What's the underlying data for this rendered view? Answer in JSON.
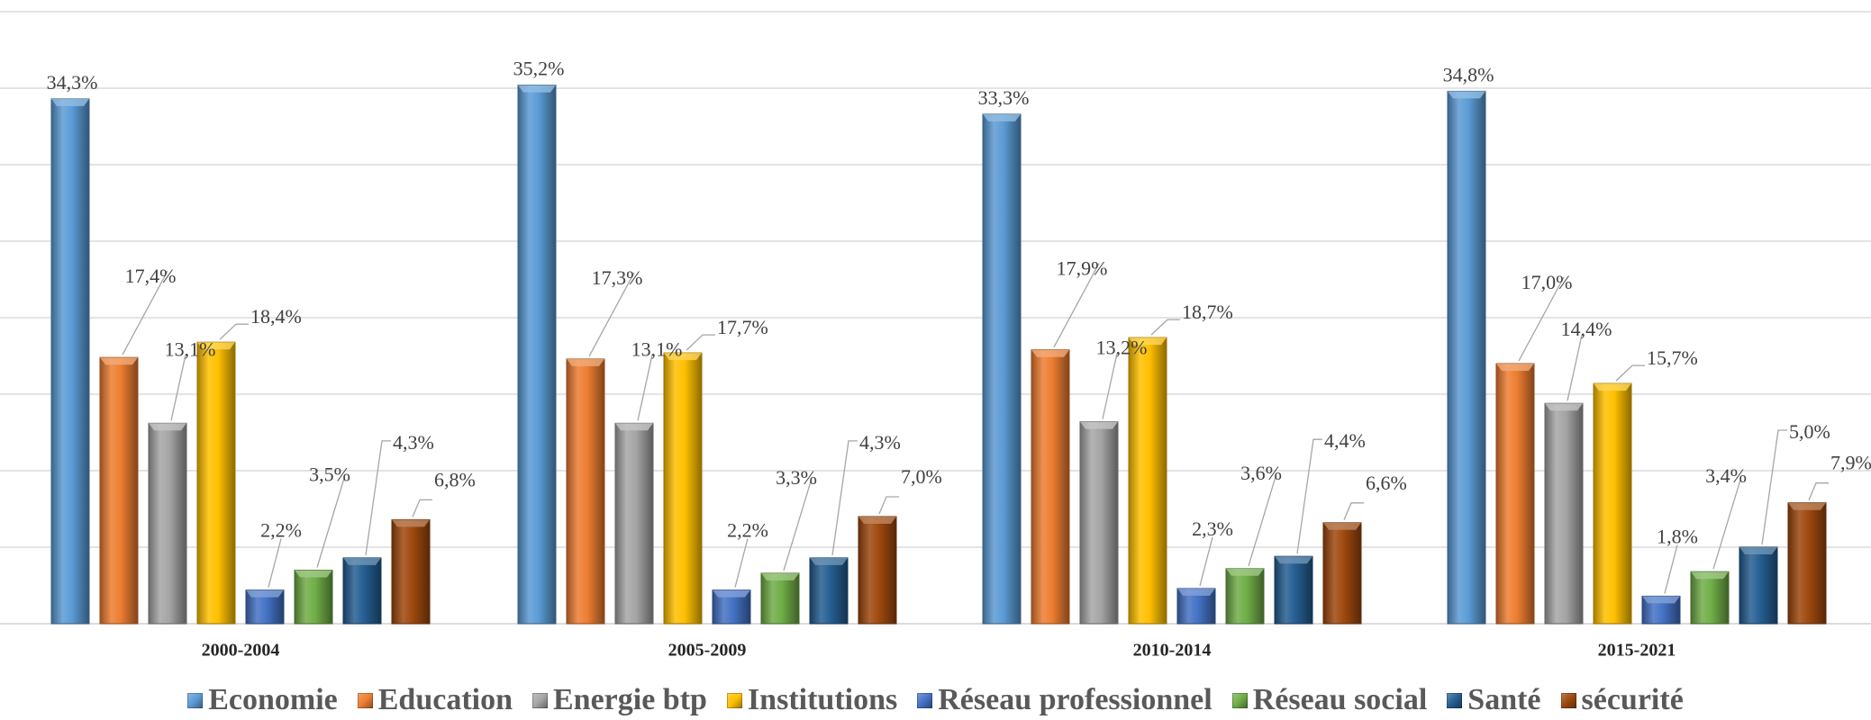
{
  "chart_data": {
    "type": "bar",
    "categories": [
      "2000-2004",
      "2005-2009",
      "2010-2014",
      "2015-2021"
    ],
    "series": [
      {
        "name": "Economie",
        "color": "#5B9BD5",
        "values": [
          34.3,
          35.2,
          33.3,
          34.8
        ],
        "labels": [
          "34,3%",
          "35,2%",
          "33,3%",
          "34,8%"
        ]
      },
      {
        "name": "Education",
        "color": "#ED7D31",
        "values": [
          17.4,
          17.3,
          17.9,
          17.0
        ],
        "labels": [
          "17,4%",
          "17,3%",
          "17,9%",
          "17,0%"
        ]
      },
      {
        "name": "Energie btp",
        "color": "#A5A5A5",
        "values": [
          13.1,
          13.1,
          13.2,
          14.4
        ],
        "labels": [
          "13,1%",
          "13,1%",
          "13,2%",
          "14,4%"
        ]
      },
      {
        "name": "Institutions",
        "color": "#FFC000",
        "values": [
          18.4,
          17.7,
          18.7,
          15.7
        ],
        "labels": [
          "18,4%",
          "17,7%",
          "18,7%",
          "15,7%"
        ]
      },
      {
        "name": "Réseau professionnel",
        "color": "#4472C4",
        "values": [
          2.2,
          2.2,
          2.3,
          1.8
        ],
        "labels": [
          "2,2%",
          "2,2%",
          "2,3%",
          "1,8%"
        ]
      },
      {
        "name": "Réseau social",
        "color": "#70AD47",
        "values": [
          3.5,
          3.3,
          3.6,
          3.4
        ],
        "labels": [
          "3,5%",
          "3,3%",
          "3,6%",
          "3,4%"
        ]
      },
      {
        "name": "Santé",
        "color": "#255E91",
        "values": [
          4.3,
          4.3,
          4.4,
          5.0
        ],
        "labels": [
          "4,3%",
          "4,3%",
          "4,4%",
          "5,0%"
        ]
      },
      {
        "name": "sécurité",
        "color": "#9E480E",
        "values": [
          6.8,
          7.0,
          6.6,
          7.9
        ],
        "labels": [
          "6,8%",
          "7,0%",
          "6,6%",
          "7,9%"
        ]
      }
    ],
    "title": "",
    "xlabel": "",
    "ylabel": "",
    "ylim": [
      0,
      40
    ],
    "grid": true,
    "legend_position": "bottom"
  }
}
